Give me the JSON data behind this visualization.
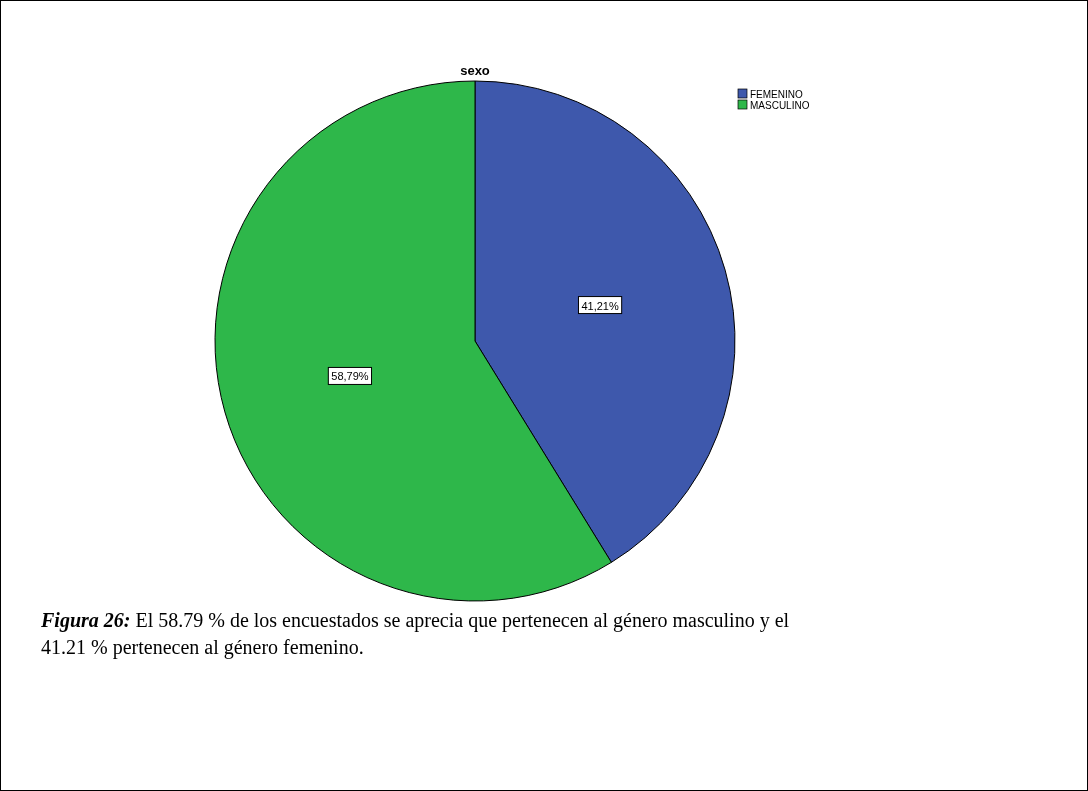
{
  "chart_data": {
    "type": "pie",
    "title": "sexo",
    "categories": [
      "FEMENINO",
      "MASCULINO"
    ],
    "values": [
      41.21,
      58.79
    ],
    "colors": [
      "#3e58ac",
      "#2eb74a"
    ],
    "value_labels": [
      "41,21%",
      "58,79%"
    ],
    "legend": "top right",
    "annotations": [
      "Figura 26: El 58.79 % de los encuestados se aprecia que pertenecen al género masculino y el 41.21 % pertenecen al género femenino."
    ]
  }
}
